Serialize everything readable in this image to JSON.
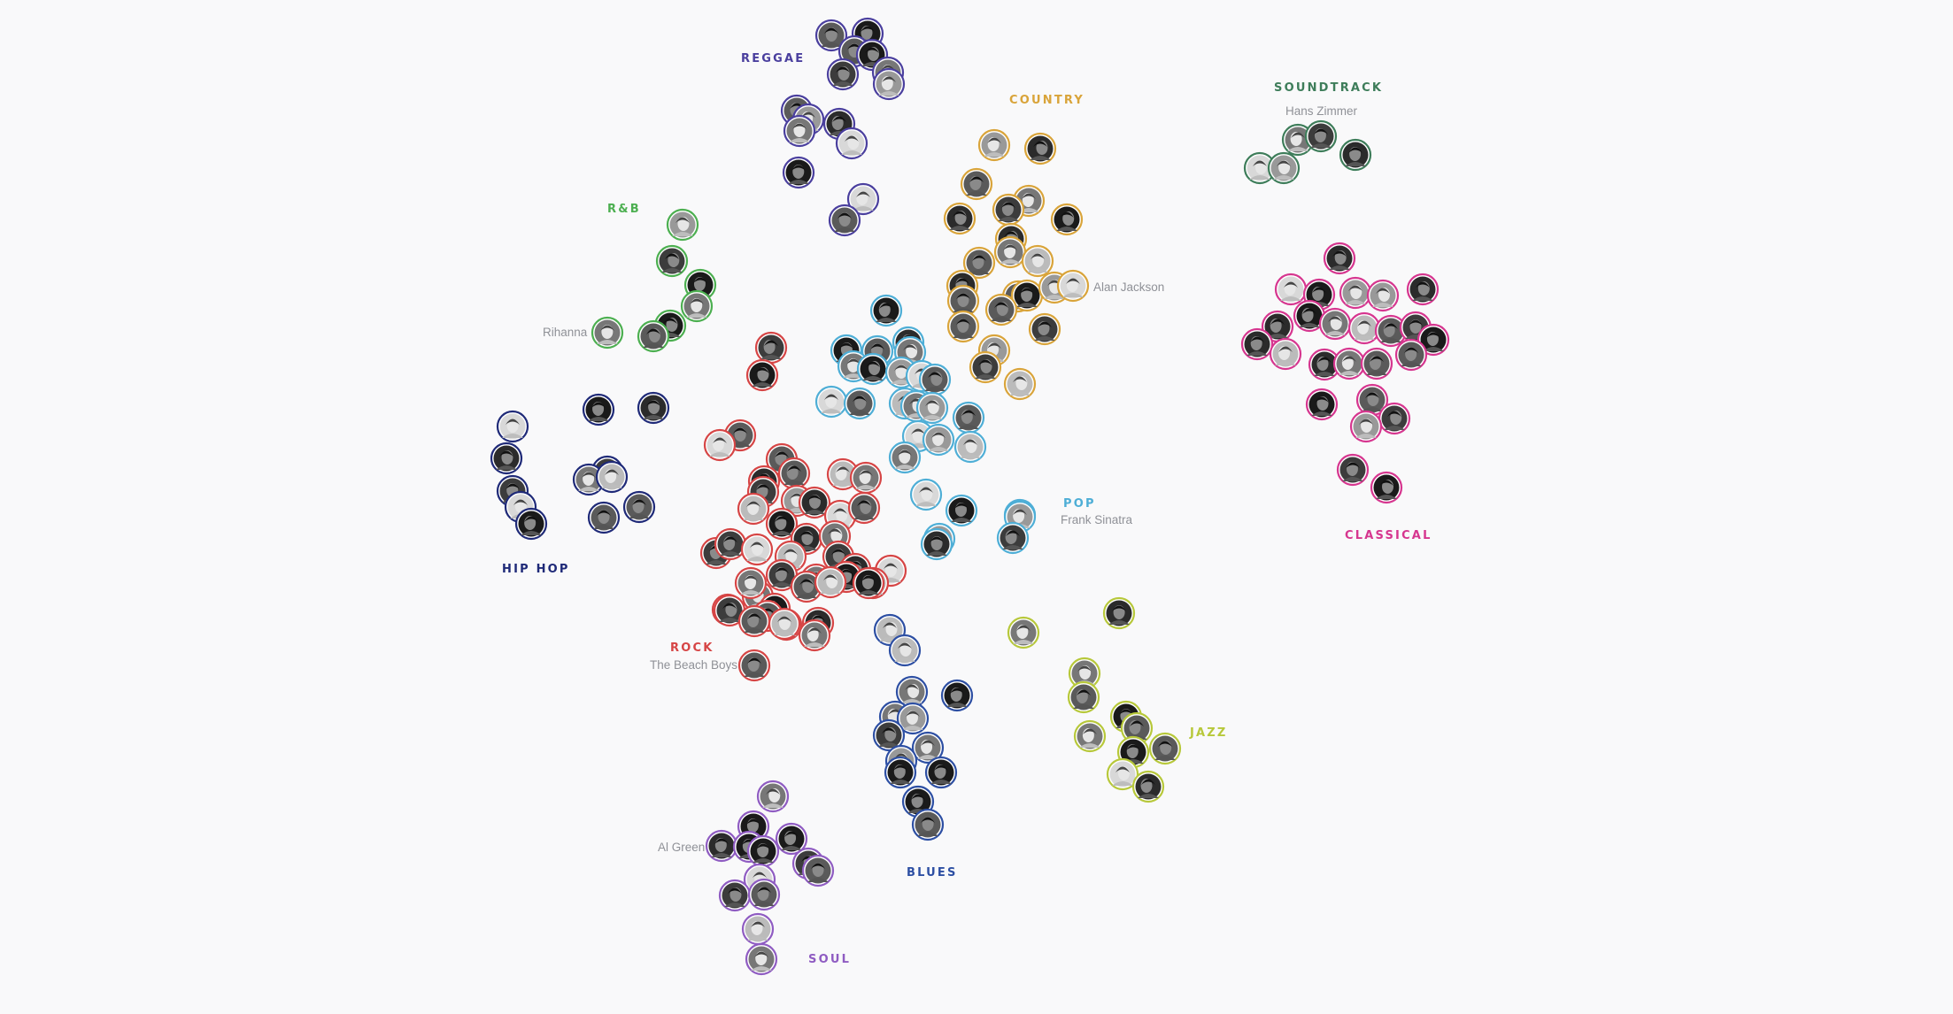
{
  "genres": [
    {
      "id": "reggae",
      "label": "REGGAE",
      "color": "#4a3f9e"
    },
    {
      "id": "country",
      "label": "COUNTRY",
      "color": "#d9a43a"
    },
    {
      "id": "soundtrack",
      "label": "SOUNDTRACK",
      "color": "#3e7d5a"
    },
    {
      "id": "rnb",
      "label": "R&B",
      "color": "#4caf50"
    },
    {
      "id": "classical",
      "label": "CLASSICAL",
      "color": "#d6368f"
    },
    {
      "id": "pop",
      "label": "POP",
      "color": "#4eaed6"
    },
    {
      "id": "hiphop",
      "label": "HIP HOP",
      "color": "#1f2a78"
    },
    {
      "id": "rock",
      "label": "ROCK",
      "color": "#d64545"
    },
    {
      "id": "jazz",
      "label": "JAZZ",
      "color": "#b7c83a"
    },
    {
      "id": "blues",
      "label": "BLUES",
      "color": "#2d4fa3"
    },
    {
      "id": "soul",
      "label": "SOUL",
      "color": "#8f5cc2"
    }
  ],
  "artist_labels": {
    "hans_zimmer": "Hans Zimmer",
    "alan_jackson": "Alan Jackson",
    "rihanna": "Rihanna",
    "frank_sinatra": "Frank Sinatra",
    "beach_boys": "The Beach Boys",
    "al_green": "Al Green"
  }
}
